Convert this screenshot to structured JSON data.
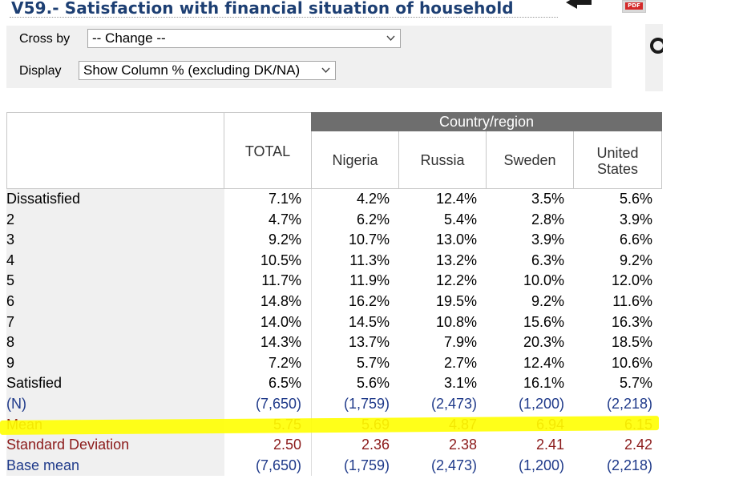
{
  "page": {
    "title": "V59.- Satisfaction with financial situation of household",
    "pdf_label": "PDF"
  },
  "controls": {
    "crossby_label": "Cross by",
    "crossby_value": "-- Change --",
    "display_label": "Display",
    "display_value": "Show Column % (excluding DK/NA)"
  },
  "table": {
    "group_header": "Country/region",
    "total_header": "TOTAL",
    "columns": [
      "Nigeria",
      "Russia",
      "Sweden",
      "United States"
    ],
    "rows": [
      {
        "label": "Dissatisfied",
        "values": [
          "7.1%",
          "4.2%",
          "12.4%",
          "3.5%",
          "5.6%"
        ]
      },
      {
        "label": "2",
        "values": [
          "4.7%",
          "6.2%",
          "5.4%",
          "2.8%",
          "3.9%"
        ]
      },
      {
        "label": "3",
        "values": [
          "9.2%",
          "10.7%",
          "13.0%",
          "3.9%",
          "6.6%"
        ]
      },
      {
        "label": "4",
        "values": [
          "10.5%",
          "11.3%",
          "13.2%",
          "6.3%",
          "9.2%"
        ]
      },
      {
        "label": "5",
        "values": [
          "11.7%",
          "11.9%",
          "12.2%",
          "10.0%",
          "12.0%"
        ]
      },
      {
        "label": "6",
        "values": [
          "14.8%",
          "16.2%",
          "19.5%",
          "9.2%",
          "11.6%"
        ]
      },
      {
        "label": "7",
        "values": [
          "14.0%",
          "14.5%",
          "10.8%",
          "15.6%",
          "16.3%"
        ]
      },
      {
        "label": "8",
        "values": [
          "14.3%",
          "13.7%",
          "7.9%",
          "20.3%",
          "18.5%"
        ]
      },
      {
        "label": "9",
        "values": [
          "7.2%",
          "5.7%",
          "2.7%",
          "12.4%",
          "10.6%"
        ]
      },
      {
        "label": "Satisfied",
        "values": [
          "6.5%",
          "5.6%",
          "3.1%",
          "16.1%",
          "5.7%"
        ]
      }
    ],
    "stats": [
      {
        "label": "(N)",
        "kind": "n",
        "values": [
          "(7,650)",
          "(1,759)",
          "(2,473)",
          "(1,200)",
          "(2,218)"
        ]
      },
      {
        "label": "Mean",
        "kind": "mean",
        "values": [
          "5.75",
          "5.69",
          "4.87",
          "6.94",
          "6.15"
        ]
      },
      {
        "label": "Standard Deviation",
        "kind": "sd",
        "values": [
          "2.50",
          "2.36",
          "2.38",
          "2.41",
          "2.42"
        ]
      },
      {
        "label": "Base mean",
        "kind": "base",
        "values": [
          "(7,650)",
          "(1,759)",
          "(2,473)",
          "(1,200)",
          "(2,218)"
        ]
      }
    ]
  },
  "colors": {
    "title": "#1d3f73",
    "group_header_bg": "#6e6e6e",
    "stat_blue": "#1f3a8a",
    "stat_red": "#8b1a1a",
    "highlight": "#ffff00"
  },
  "icons": {
    "back": "back-arrow-icon",
    "pdf": "pdf-icon",
    "side": "circle-icon"
  }
}
